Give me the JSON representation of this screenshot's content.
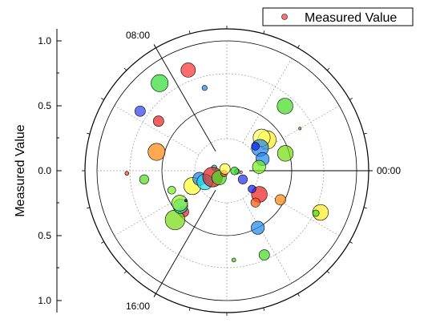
{
  "chart_data": {
    "type": "scatter",
    "subtype": "polar-bubble",
    "ylabel": "Measured Value",
    "legend": {
      "label": "Measured Value",
      "placement": "top-right"
    },
    "radial_ticks_upper": [
      "1.0",
      "0.5",
      "0.0"
    ],
    "radial_ticks_lower": [
      "0.5",
      "1.0"
    ],
    "radial_range": [
      0,
      1
    ],
    "angle_labels": [
      "00:00",
      "08:00",
      "16:00"
    ],
    "angle_unit": "hours",
    "angle_period": 24,
    "grid": true,
    "points": [
      {
        "t": 8.5,
        "r": 0.85,
        "size": 13,
        "color": "#33dd33"
      },
      {
        "t": 7.4,
        "r": 0.83,
        "size": 11,
        "color": "#ff3333"
      },
      {
        "t": 9.7,
        "r": 0.81,
        "size": 8,
        "color": "#3344ee"
      },
      {
        "t": 7.0,
        "r": 0.66,
        "size": 4,
        "color": "#2288ee"
      },
      {
        "t": 9.6,
        "r": 0.65,
        "size": 8,
        "color": "#ee2222"
      },
      {
        "t": 3.2,
        "r": 0.67,
        "size": 12,
        "color": "#44dd22"
      },
      {
        "t": 2.0,
        "r": 0.65,
        "size": 2,
        "color": "#44dd22"
      },
      {
        "t": 2.5,
        "r": 0.39,
        "size": 14,
        "color": "#ffee22"
      },
      {
        "t": 2.9,
        "r": 0.37,
        "size": 13,
        "color": "#ffff66"
      },
      {
        "t": 2.3,
        "r": 0.31,
        "size": 13,
        "color": "#2288ee"
      },
      {
        "t": 2.7,
        "r": 0.29,
        "size": 6,
        "color": "#1122ee"
      },
      {
        "t": 1.1,
        "r": 0.47,
        "size": 12,
        "color": "#77dd11"
      },
      {
        "t": 1.2,
        "r": 0.29,
        "size": 10,
        "color": "#2288ee"
      },
      {
        "t": 0.45,
        "r": 0.25,
        "size": 10,
        "color": "#77ee22"
      },
      {
        "t": 23.6,
        "r": 0.11,
        "size": 2,
        "color": "#ff8888"
      },
      {
        "t": 11.0,
        "r": 0.56,
        "size": 13,
        "color": "#ff8811"
      },
      {
        "t": 11.1,
        "r": 0.1,
        "size": 4,
        "color": "#22cccc"
      },
      {
        "t": 12.1,
        "r": 0.77,
        "size": 3,
        "color": "#ff4444"
      },
      {
        "t": 12.4,
        "r": 0.64,
        "size": 7,
        "color": "#55dd22"
      },
      {
        "t": 13.3,
        "r": 0.45,
        "size": 6,
        "color": "#77ee22"
      },
      {
        "t": 22.4,
        "r": 0.79,
        "size": 12,
        "color": "#ffee22"
      },
      {
        "t": 22.3,
        "r": 0.76,
        "size": 5,
        "color": "#44dd22"
      },
      {
        "t": 22.1,
        "r": 0.47,
        "size": 8,
        "color": "#ff8811"
      },
      {
        "t": 14.9,
        "r": 0.46,
        "size": 8,
        "color": "#ee2222"
      },
      {
        "t": 14.9,
        "r": 0.55,
        "size": 15,
        "color": "#77dd11"
      },
      {
        "t": 13.6,
        "r": 0.29,
        "size": 13,
        "color": "#ffff33"
      },
      {
        "t": 13.1,
        "r": 0.22,
        "size": 10,
        "color": "#2288ee"
      },
      {
        "t": 14.5,
        "r": 0.45,
        "size": 11,
        "color": "#00ccdd"
      },
      {
        "t": 14.3,
        "r": 0.44,
        "size": 12,
        "color": "#99ee33"
      },
      {
        "t": 14.4,
        "r": 0.39,
        "size": 2,
        "color": "#000000"
      },
      {
        "t": 13.8,
        "r": 0.19,
        "size": 12,
        "color": "#22ddee"
      },
      {
        "t": 13.6,
        "r": 0.12,
        "size": 15,
        "color": "#dd2222"
      },
      {
        "t": 14.8,
        "r": 0.08,
        "size": 11,
        "color": "#44dd22"
      },
      {
        "t": 15.0,
        "r": 0.03,
        "size": 5,
        "color": "#ff3333"
      },
      {
        "t": 9.1,
        "r": 0.02,
        "size": 8,
        "color": "#ffff44"
      },
      {
        "t": 23.7,
        "r": 0.08,
        "size": 4,
        "color": "#44dd22"
      },
      {
        "t": 21.6,
        "r": 0.31,
        "size": 12,
        "color": "#ee2222"
      },
      {
        "t": 20.8,
        "r": 0.33,
        "size": 7,
        "color": "#ff5511"
      },
      {
        "t": 21.6,
        "r": 0.24,
        "size": 6,
        "color": "#1122ee"
      },
      {
        "t": 22.1,
        "r": 0.14,
        "size": 7,
        "color": "#2233ee"
      },
      {
        "t": 23.9,
        "r": 0.06,
        "size": 6,
        "color": "#33dd33"
      },
      {
        "t": 19.9,
        "r": 0.5,
        "size": 10,
        "color": "#2288ee"
      },
      {
        "t": 19.6,
        "r": 0.71,
        "size": 8,
        "color": "#44dd22"
      },
      {
        "t": 18.3,
        "r": 0.69,
        "size": 3,
        "color": "#44dd22"
      }
    ]
  }
}
